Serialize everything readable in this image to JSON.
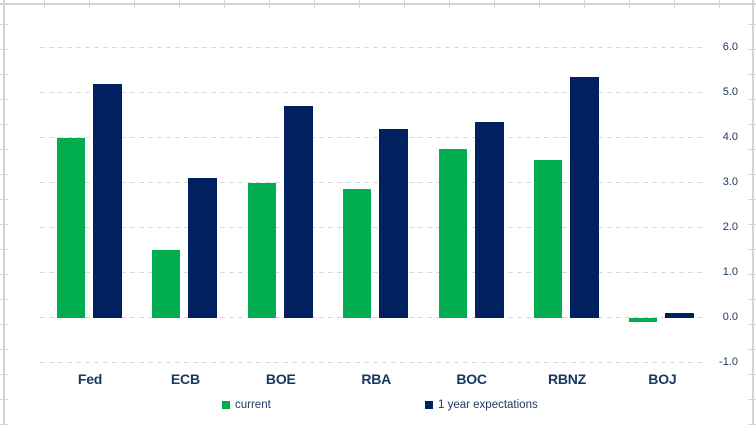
{
  "chart_data": {
    "type": "bar",
    "categories": [
      "Fed",
      "ECB",
      "BOE",
      "RBA",
      "BOC",
      "RBNZ",
      "BOJ"
    ],
    "series": [
      {
        "name": "current",
        "color": "#00AE4F",
        "values": [
          4.0,
          1.5,
          3.0,
          2.85,
          3.75,
          3.5,
          -0.1
        ]
      },
      {
        "name": "1 year expectations",
        "color": "#002060",
        "values": [
          5.2,
          3.1,
          4.7,
          4.2,
          4.35,
          5.35,
          0.1
        ]
      }
    ],
    "title": "",
    "xlabel": "",
    "ylabel": "",
    "ylim": [
      -1.0,
      6.0
    ],
    "ytick_step": 1.0,
    "ytick_labels": [
      "6.0",
      "5.0",
      "4.0",
      "3.0",
      "2.0",
      "1.0",
      "0.0",
      "-1.0"
    ],
    "axis_side": "right",
    "grid": "horizontal-dashed",
    "legend_position": "bottom"
  },
  "colors": {
    "current_green": "#00AE4F",
    "expectations_navy": "#002060",
    "gridline_gray": "#D9D9D9",
    "worksheet_gray": "#D4D4D4",
    "label_navy": "#1F3864",
    "category_navy": "#17375E"
  }
}
